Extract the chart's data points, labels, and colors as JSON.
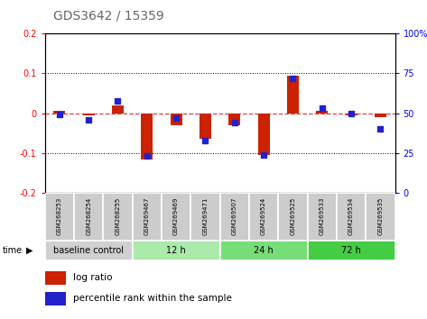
{
  "title": "GDS3642 / 15359",
  "samples": [
    "GSM268253",
    "GSM268254",
    "GSM268255",
    "GSM269467",
    "GSM269469",
    "GSM269471",
    "GSM269507",
    "GSM269524",
    "GSM269525",
    "GSM269533",
    "GSM269534",
    "GSM269535"
  ],
  "log_ratio": [
    0.005,
    -0.005,
    0.02,
    -0.115,
    -0.03,
    -0.065,
    -0.03,
    -0.105,
    0.095,
    0.005,
    -0.005,
    -0.01
  ],
  "percentile_rank": [
    49,
    46,
    58,
    23,
    47,
    33,
    44,
    24,
    72,
    53,
    50,
    40
  ],
  "ylim_left": [
    -0.2,
    0.2
  ],
  "ylim_right": [
    0,
    100
  ],
  "yticks_left": [
    -0.2,
    -0.1,
    0.0,
    0.1,
    0.2
  ],
  "yticks_right": [
    0,
    25,
    50,
    75,
    100
  ],
  "ytick_labels_left": [
    "-0.2",
    "-0.1",
    "0",
    "0.1",
    "0.2"
  ],
  "ytick_labels_right": [
    "0",
    "25",
    "50",
    "75",
    "100%"
  ],
  "groups": [
    {
      "label": "baseline control",
      "start": 0,
      "end": 3,
      "color": "#d0d0d0"
    },
    {
      "label": "12 h",
      "start": 3,
      "end": 6,
      "color": "#aaeaaa"
    },
    {
      "label": "24 h",
      "start": 6,
      "end": 9,
      "color": "#77dd77"
    },
    {
      "label": "72 h",
      "start": 9,
      "end": 12,
      "color": "#44cc44"
    }
  ],
  "bar_color_red": "#cc2200",
  "bar_color_blue": "#2222cc",
  "hline_color": "#dd4444",
  "grid_color": "#000000",
  "background_color": "#ffffff",
  "bar_width": 0.4,
  "sample_box_color": "#cccccc",
  "title_color": "#666666"
}
